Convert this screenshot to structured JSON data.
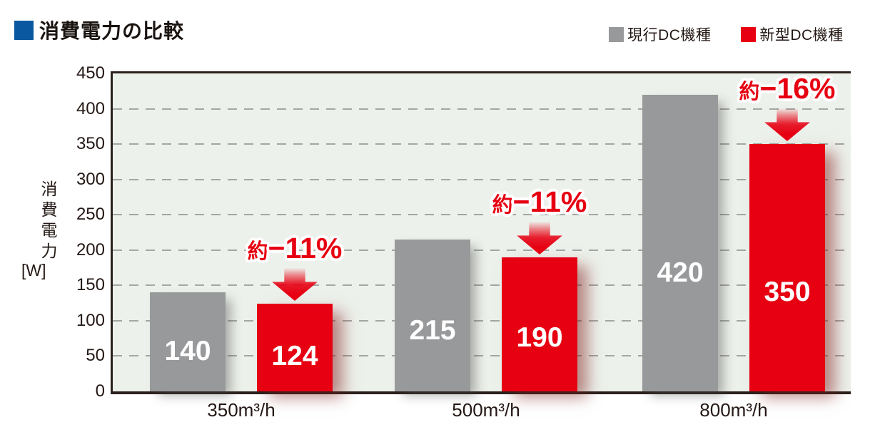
{
  "title": {
    "text": "消費電力の比較"
  },
  "colors": {
    "title_marker": "#0a58a0",
    "plot_background": "#edf1eb",
    "axis": "#2b201c",
    "grid": "#a3a6a3",
    "value_label": "#ffffff",
    "annotation": "#e60012"
  },
  "chart_data": {
    "type": "bar",
    "title": "消費電力の比較",
    "categories": [
      "350m³/h",
      "500m³/h",
      "800m³/h"
    ],
    "series": [
      {
        "name": "現行DC機種",
        "color": "#98999b",
        "values": [
          140,
          215,
          420
        ]
      },
      {
        "name": "新型DC機種",
        "color": "#e60012",
        "values": [
          124,
          190,
          350
        ]
      }
    ],
    "reductions": [
      {
        "prefix": "約",
        "value": "−11%"
      },
      {
        "prefix": "約",
        "value": "−11%"
      },
      {
        "prefix": "約",
        "value": "−16%"
      }
    ],
    "ylabel": "消費電力",
    "y_unit": "[W]",
    "ylim": [
      0,
      450
    ],
    "ytick_step": 50,
    "grid": "horizontal-dashed",
    "legend_position": "top-right"
  }
}
